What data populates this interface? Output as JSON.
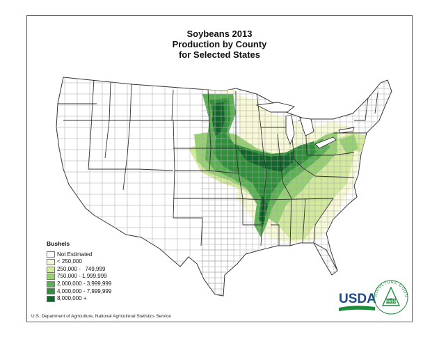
{
  "title": {
    "line1": "Soybeans 2013",
    "line2": "Production by County",
    "line3": "for Selected States"
  },
  "legend": {
    "title": "Bushels",
    "items": [
      {
        "label": "Not Estimated",
        "color": "#ffffff"
      },
      {
        "label": "< 250,000",
        "color": "#f7f8d6"
      },
      {
        "label": "250,000 -   749,999",
        "color": "#d3ea9e"
      },
      {
        "label": "750,000 - 1,999,999",
        "color": "#98d074"
      },
      {
        "label": "2,000,000 - 3,999,999",
        "color": "#5cb054"
      },
      {
        "label": "4,000,000 - 7,999,999",
        "color": "#2f8f3a"
      },
      {
        "label": "8,000,000 +",
        "color": "#12652a"
      }
    ]
  },
  "source": "U.S. Department of Agriculture, National Agricultural Statistics Service",
  "logo": {
    "usda_text": "USDA",
    "seal_text": "AGRICULTURE COUNTS",
    "seal_center": "NASS"
  },
  "colors": {
    "usda_blue": "#1c4a8e",
    "usda_green": "#1e8a3c",
    "county_line": "#9a9a9a",
    "state_line": "#333333"
  }
}
